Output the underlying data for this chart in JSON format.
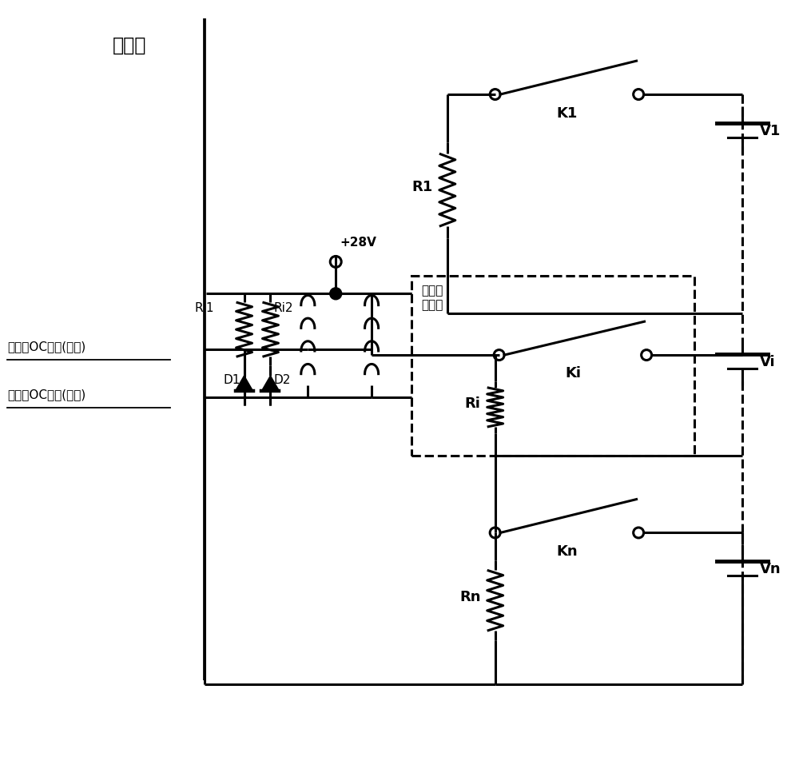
{
  "bg_color": "#ffffff",
  "lw": 2.2,
  "fs": 13,
  "fs_small": 11,
  "labels": {
    "title": "下位机",
    "v28": "+28V",
    "K1": "K1",
    "Ki": "Ki",
    "Kn": "Kn",
    "R1": "R1",
    "Ri": "Ri",
    "Rn": "Rn",
    "Ri1": "Ri1",
    "Ri2": "Ri2",
    "D1": "D1",
    "D2": "D2",
    "V1": "V1",
    "Vi": "Vi",
    "Vn": "Vn",
    "relay_box": "磁保持\n继电器",
    "oc_close": "脉冲型OC指令(闭合)",
    "oc_open": "脉冲型OC指令(断开)"
  }
}
